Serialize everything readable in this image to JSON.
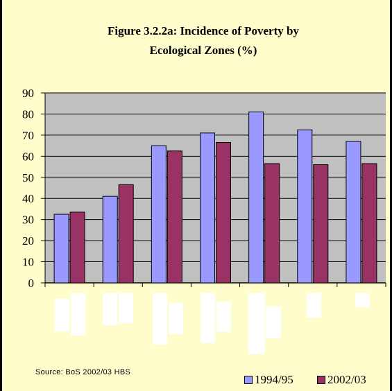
{
  "title_line1": "Figure 3.2.2a: Incidence of Poverty by",
  "title_line2": "Ecological Zones (%)",
  "source": "Source: BoS 2002/03 HBS",
  "chart_data": {
    "type": "bar",
    "title": "Figure 3.2.2a: Incidence of Poverty by Ecological Zones (%)",
    "categories": [
      "",
      "",
      "",
      "",
      "",
      "",
      ""
    ],
    "series": [
      {
        "name": "1994/95",
        "values": [
          32.5,
          41,
          65,
          71,
          81,
          72.5,
          67
        ]
      },
      {
        "name": "2002/03",
        "values": [
          33.5,
          46.5,
          62.5,
          66.5,
          56.5,
          56,
          56.5
        ]
      }
    ],
    "ylim": [
      0,
      90
    ],
    "yticks": [
      "0",
      "10",
      "20",
      "30",
      "40",
      "50",
      "60",
      "70",
      "80",
      "90"
    ],
    "grid": true,
    "legend_position": "bottom-right",
    "colors": {
      "1994/95": "#9999ff",
      "2002/03": "#993366",
      "plot_background": "#c0c0c0",
      "page_background": "#fffdcc"
    }
  }
}
